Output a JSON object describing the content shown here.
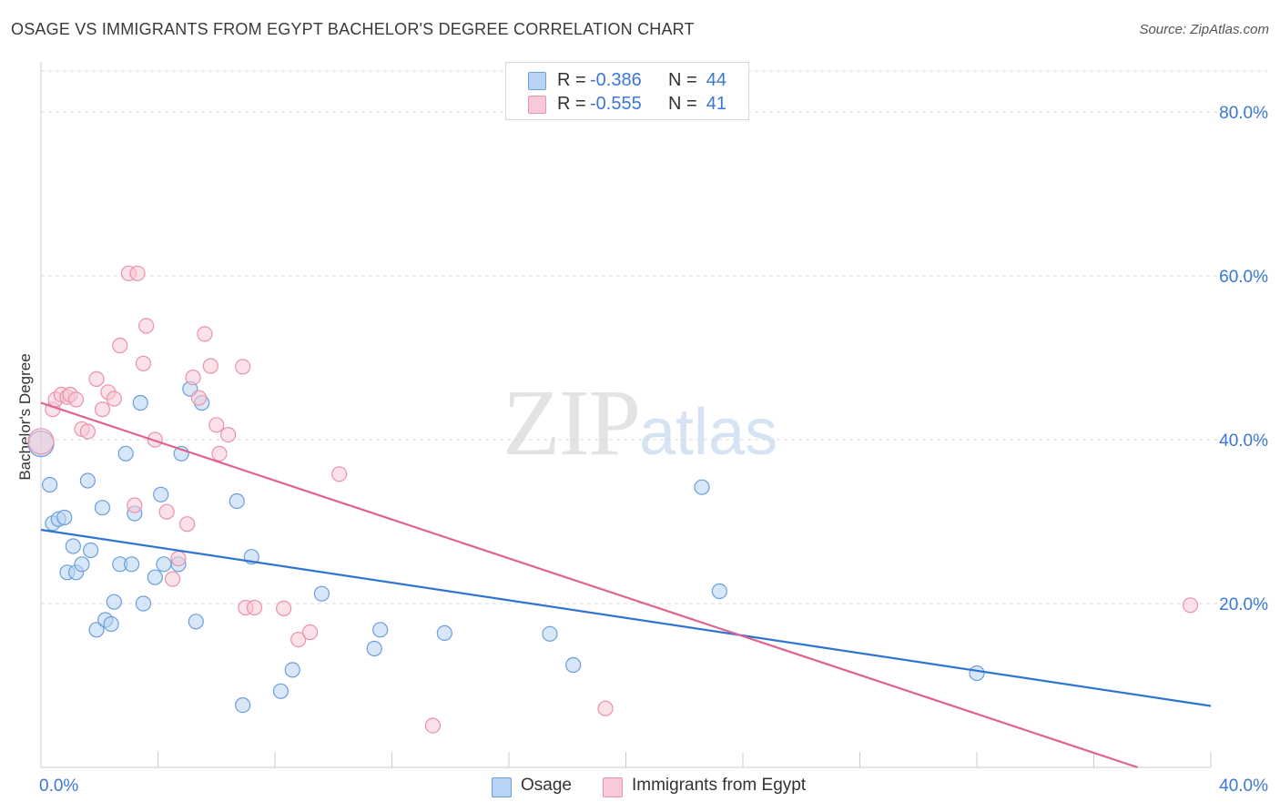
{
  "title": "OSAGE VS IMMIGRANTS FROM EGYPT BACHELOR'S DEGREE CORRELATION CHART",
  "source": "Source: ZipAtlas.com",
  "watermark": {
    "zip": "ZIP",
    "atlas": "atlas"
  },
  "legend_top": [
    {
      "r_label": "R =",
      "r_value": "-0.386",
      "n_label": "N =",
      "n_value": "44"
    },
    {
      "r_label": "R =",
      "r_value": "-0.555",
      "n_label": "N =",
      "n_value": "41"
    }
  ],
  "legend_bottom": [
    {
      "label": "Osage"
    },
    {
      "label": "Immigrants from Egypt"
    }
  ],
  "colors": {
    "osage_fill": "#b8d3f3",
    "osage_stroke": "#6b9edb",
    "osage_line": "#2f74d0",
    "egypt_fill": "#f8c9d6",
    "egypt_stroke": "#e892ab",
    "egypt_line": "#e0628f",
    "tick_label": "#3a78d4",
    "grid": "#d9d9d9"
  },
  "chart_data": {
    "type": "scatter",
    "title": "OSAGE VS IMMIGRANTS FROM EGYPT BACHELOR'S DEGREE CORRELATION CHART",
    "xlabel": "",
    "ylabel": "Bachelor's Degree",
    "xlim": [
      0,
      40
    ],
    "ylim": [
      0,
      85
    ],
    "x_tick_labels": [
      {
        "value": 0,
        "label": "0.0%"
      },
      {
        "value": 40,
        "label": "40.0%"
      }
    ],
    "y_tick_labels": [
      {
        "value": 20,
        "label": "20.0%"
      },
      {
        "value": 40,
        "label": "40.0%"
      },
      {
        "value": 60,
        "label": "60.0%"
      },
      {
        "value": 80,
        "label": "80.0%"
      }
    ],
    "grid": true,
    "legend_position": "bottom",
    "series": [
      {
        "name": "Osage",
        "r": -0.386,
        "n": 44,
        "trend": {
          "x0": 0,
          "y0": 29.0,
          "x1": 40,
          "y1": 7.5
        },
        "points": [
          [
            0.0,
            39.5
          ],
          [
            0.3,
            34.5
          ],
          [
            0.4,
            29.8
          ],
          [
            0.6,
            30.3
          ],
          [
            0.8,
            30.5
          ],
          [
            0.9,
            23.8
          ],
          [
            1.1,
            27.0
          ],
          [
            1.2,
            23.8
          ],
          [
            1.4,
            24.8
          ],
          [
            1.6,
            35.0
          ],
          [
            1.7,
            26.5
          ],
          [
            1.9,
            16.8
          ],
          [
            2.1,
            31.7
          ],
          [
            2.2,
            18.0
          ],
          [
            2.4,
            17.5
          ],
          [
            2.5,
            20.2
          ],
          [
            2.7,
            24.8
          ],
          [
            2.9,
            38.3
          ],
          [
            3.1,
            24.8
          ],
          [
            3.2,
            31.0
          ],
          [
            3.4,
            44.5
          ],
          [
            3.5,
            20.0
          ],
          [
            3.9,
            23.2
          ],
          [
            4.1,
            33.3
          ],
          [
            4.2,
            24.8
          ],
          [
            4.7,
            24.8
          ],
          [
            4.8,
            38.3
          ],
          [
            5.1,
            46.2
          ],
          [
            5.3,
            17.8
          ],
          [
            5.5,
            44.5
          ],
          [
            6.7,
            32.5
          ],
          [
            6.9,
            7.6
          ],
          [
            7.2,
            25.7
          ],
          [
            8.2,
            9.3
          ],
          [
            8.6,
            11.9
          ],
          [
            9.6,
            21.2
          ],
          [
            11.4,
            14.5
          ],
          [
            11.6,
            16.8
          ],
          [
            13.8,
            16.4
          ],
          [
            17.4,
            16.3
          ],
          [
            18.2,
            12.5
          ],
          [
            22.6,
            34.2
          ],
          [
            23.2,
            21.5
          ],
          [
            32.0,
            11.5
          ]
        ]
      },
      {
        "name": "Immigrants from Egypt",
        "r": -0.555,
        "n": 41,
        "trend": {
          "x0": 0,
          "y0": 44.5,
          "x1": 37.5,
          "y1": 0
        },
        "points": [
          [
            0.0,
            39.8
          ],
          [
            0.4,
            43.7
          ],
          [
            0.5,
            44.9
          ],
          [
            0.7,
            45.5
          ],
          [
            0.9,
            45.2
          ],
          [
            1.0,
            45.5
          ],
          [
            1.2,
            44.9
          ],
          [
            1.4,
            41.3
          ],
          [
            1.6,
            41.0
          ],
          [
            1.9,
            47.4
          ],
          [
            2.1,
            43.7
          ],
          [
            2.3,
            45.8
          ],
          [
            2.5,
            45.0
          ],
          [
            2.7,
            51.5
          ],
          [
            3.0,
            60.3
          ],
          [
            3.2,
            32.0
          ],
          [
            3.3,
            60.3
          ],
          [
            3.5,
            49.3
          ],
          [
            3.6,
            53.9
          ],
          [
            3.9,
            40.0
          ],
          [
            4.3,
            31.2
          ],
          [
            4.5,
            23.0
          ],
          [
            4.7,
            25.5
          ],
          [
            5.0,
            29.7
          ],
          [
            5.2,
            47.6
          ],
          [
            5.4,
            45.1
          ],
          [
            5.6,
            52.9
          ],
          [
            5.8,
            49.0
          ],
          [
            6.0,
            41.8
          ],
          [
            6.1,
            38.3
          ],
          [
            6.4,
            40.6
          ],
          [
            6.9,
            48.9
          ],
          [
            7.0,
            19.5
          ],
          [
            7.3,
            19.5
          ],
          [
            8.3,
            19.4
          ],
          [
            8.8,
            15.6
          ],
          [
            9.2,
            16.5
          ],
          [
            10.2,
            35.8
          ],
          [
            13.4,
            5.1
          ],
          [
            19.3,
            7.2
          ],
          [
            39.3,
            19.8
          ]
        ]
      }
    ]
  }
}
